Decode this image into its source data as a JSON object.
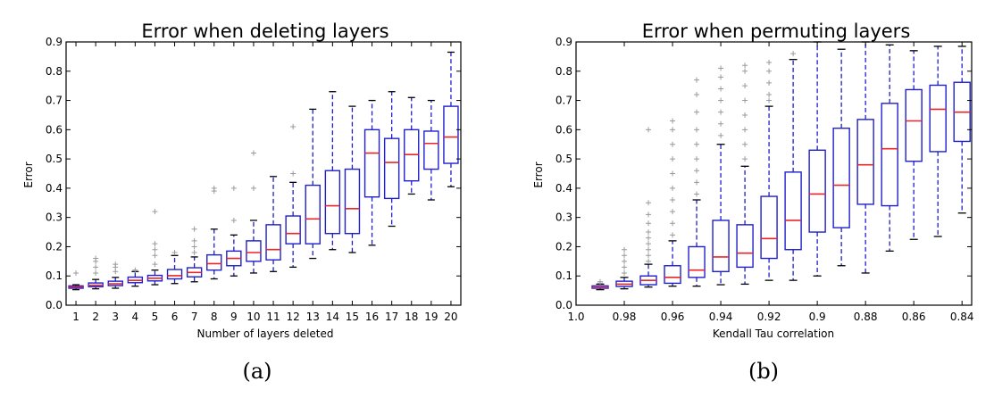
{
  "chart_data": [
    {
      "type": "box",
      "title": "Error when deleting layers",
      "xlabel": "Number of layers deleted",
      "ylabel": "Error",
      "caption": "(a)",
      "ylim": [
        0,
        0.9
      ],
      "yticks": [
        "0.0",
        "0.1",
        "0.2",
        "0.3",
        "0.4",
        "0.5",
        "0.6",
        "0.7",
        "0.8",
        "0.9"
      ],
      "categories": [
        "1",
        "2",
        "3",
        "4",
        "5",
        "6",
        "7",
        "8",
        "9",
        "10",
        "11",
        "12",
        "13",
        "14",
        "15",
        "16",
        "17",
        "18",
        "19",
        "20"
      ],
      "boxes": [
        {
          "lo": 0.053,
          "q1": 0.058,
          "med": 0.062,
          "q3": 0.066,
          "hi": 0.07,
          "out": [
            0.11
          ]
        },
        {
          "lo": 0.056,
          "q1": 0.063,
          "med": 0.068,
          "q3": 0.076,
          "hi": 0.088,
          "out": [
            0.11,
            0.13,
            0.15,
            0.16
          ]
        },
        {
          "lo": 0.058,
          "q1": 0.067,
          "med": 0.073,
          "q3": 0.082,
          "hi": 0.095,
          "out": [
            0.115,
            0.13,
            0.14
          ]
        },
        {
          "lo": 0.065,
          "q1": 0.077,
          "med": 0.085,
          "q3": 0.096,
          "hi": 0.115,
          "out": [
            0.12
          ]
        },
        {
          "lo": 0.07,
          "q1": 0.083,
          "med": 0.092,
          "q3": 0.102,
          "hi": 0.12,
          "out": [
            0.14,
            0.17,
            0.19,
            0.21,
            0.32
          ]
        },
        {
          "lo": 0.074,
          "q1": 0.09,
          "med": 0.101,
          "q3": 0.122,
          "hi": 0.17,
          "out": [
            0.18
          ]
        },
        {
          "lo": 0.08,
          "q1": 0.097,
          "med": 0.112,
          "q3": 0.128,
          "hi": 0.165,
          "out": [
            0.18,
            0.2,
            0.22,
            0.26
          ]
        },
        {
          "lo": 0.09,
          "q1": 0.12,
          "med": 0.142,
          "q3": 0.172,
          "hi": 0.26,
          "out": [
            0.39,
            0.4
          ]
        },
        {
          "lo": 0.1,
          "q1": 0.135,
          "med": 0.16,
          "q3": 0.185,
          "hi": 0.24,
          "out": [
            0.29,
            0.4
          ]
        },
        {
          "lo": 0.11,
          "q1": 0.15,
          "med": 0.18,
          "q3": 0.22,
          "hi": 0.29,
          "out": [
            0.4,
            0.52
          ]
        },
        {
          "lo": 0.115,
          "q1": 0.155,
          "med": 0.19,
          "q3": 0.275,
          "hi": 0.44,
          "out": []
        },
        {
          "lo": 0.13,
          "q1": 0.21,
          "med": 0.245,
          "q3": 0.305,
          "hi": 0.42,
          "out": [
            0.45,
            0.61
          ]
        },
        {
          "lo": 0.16,
          "q1": 0.21,
          "med": 0.295,
          "q3": 0.41,
          "hi": 0.67,
          "out": []
        },
        {
          "lo": 0.19,
          "q1": 0.245,
          "med": 0.34,
          "q3": 0.46,
          "hi": 0.73,
          "out": []
        },
        {
          "lo": 0.18,
          "q1": 0.245,
          "med": 0.33,
          "q3": 0.465,
          "hi": 0.68,
          "out": []
        },
        {
          "lo": 0.205,
          "q1": 0.37,
          "med": 0.52,
          "q3": 0.6,
          "hi": 0.7,
          "out": []
        },
        {
          "lo": 0.27,
          "q1": 0.365,
          "med": 0.488,
          "q3": 0.57,
          "hi": 0.73,
          "out": []
        },
        {
          "lo": 0.38,
          "q1": 0.425,
          "med": 0.515,
          "q3": 0.6,
          "hi": 0.71,
          "out": []
        },
        {
          "lo": 0.36,
          "q1": 0.465,
          "med": 0.553,
          "q3": 0.595,
          "hi": 0.7,
          "out": []
        },
        {
          "lo": 0.405,
          "q1": 0.485,
          "med": 0.575,
          "q3": 0.68,
          "hi": 0.865,
          "out": []
        }
      ]
    },
    {
      "type": "box",
      "title": "Error when permuting layers",
      "xlabel": "Kendall Tau correlation",
      "ylabel": "Error",
      "caption": "(b)",
      "ylim": [
        0,
        0.9
      ],
      "yticks": [
        "0.0",
        "0.1",
        "0.2",
        "0.3",
        "0.4",
        "0.5",
        "0.6",
        "0.7",
        "0.8",
        "0.9"
      ],
      "xticks": [
        "1.0",
        "0.98",
        "0.96",
        "0.94",
        "0.92",
        "0.9",
        "0.88",
        "0.86",
        "0.84"
      ],
      "xlim": [
        1.0,
        0.836
      ],
      "boxes": [
        {
          "x": 0.99,
          "lo": 0.053,
          "q1": 0.058,
          "med": 0.061,
          "q3": 0.066,
          "hi": 0.072,
          "out": [
            0.075,
            0.08
          ]
        },
        {
          "x": 0.98,
          "lo": 0.056,
          "q1": 0.064,
          "med": 0.072,
          "q3": 0.082,
          "hi": 0.095,
          "out": [
            0.11,
            0.13,
            0.15,
            0.17,
            0.19
          ]
        },
        {
          "x": 0.97,
          "lo": 0.062,
          "q1": 0.07,
          "med": 0.085,
          "q3": 0.1,
          "hi": 0.14,
          "out": [
            0.15,
            0.17,
            0.19,
            0.21,
            0.23,
            0.25,
            0.28,
            0.31,
            0.35,
            0.6
          ]
        },
        {
          "x": 0.96,
          "lo": 0.065,
          "q1": 0.075,
          "med": 0.095,
          "q3": 0.135,
          "hi": 0.22,
          "out": [
            0.24,
            0.28,
            0.32,
            0.36,
            0.4,
            0.45,
            0.5,
            0.55,
            0.6,
            0.63
          ]
        },
        {
          "x": 0.95,
          "lo": 0.065,
          "q1": 0.095,
          "med": 0.12,
          "q3": 0.2,
          "hi": 0.36,
          "out": [
            0.38,
            0.42,
            0.46,
            0.5,
            0.55,
            0.6,
            0.66,
            0.72,
            0.77
          ]
        },
        {
          "x": 0.94,
          "lo": 0.07,
          "q1": 0.115,
          "med": 0.165,
          "q3": 0.29,
          "hi": 0.55,
          "out": [
            0.58,
            0.62,
            0.66,
            0.7,
            0.74,
            0.78,
            0.81
          ]
        },
        {
          "x": 0.93,
          "lo": 0.072,
          "q1": 0.13,
          "med": 0.178,
          "q3": 0.275,
          "hi": 0.475,
          "out": [
            0.5,
            0.55,
            0.6,
            0.65,
            0.7,
            0.75,
            0.8,
            0.82
          ]
        },
        {
          "x": 0.92,
          "lo": 0.085,
          "q1": 0.16,
          "med": 0.228,
          "q3": 0.372,
          "hi": 0.68,
          "out": [
            0.7,
            0.72,
            0.76,
            0.8,
            0.83
          ]
        },
        {
          "x": 0.91,
          "lo": 0.085,
          "q1": 0.19,
          "med": 0.29,
          "q3": 0.455,
          "hi": 0.84,
          "out": [
            0.86
          ]
        },
        {
          "x": 0.9,
          "lo": 0.1,
          "q1": 0.25,
          "med": 0.38,
          "q3": 0.53,
          "hi": 0.9,
          "out": []
        },
        {
          "x": 0.89,
          "lo": 0.135,
          "q1": 0.265,
          "med": 0.41,
          "q3": 0.605,
          "hi": 0.875,
          "out": []
        },
        {
          "x": 0.88,
          "lo": 0.11,
          "q1": 0.345,
          "med": 0.48,
          "q3": 0.635,
          "hi": 0.9,
          "out": []
        },
        {
          "x": 0.87,
          "lo": 0.185,
          "q1": 0.34,
          "med": 0.535,
          "q3": 0.69,
          "hi": 0.89,
          "out": []
        },
        {
          "x": 0.86,
          "lo": 0.225,
          "q1": 0.492,
          "med": 0.63,
          "q3": 0.737,
          "hi": 0.87,
          "out": []
        },
        {
          "x": 0.85,
          "lo": 0.235,
          "q1": 0.525,
          "med": 0.67,
          "q3": 0.752,
          "hi": 0.885,
          "out": []
        },
        {
          "x": 0.84,
          "lo": 0.315,
          "q1": 0.56,
          "med": 0.66,
          "q3": 0.762,
          "hi": 0.885,
          "out": []
        }
      ]
    }
  ],
  "style": {
    "box_color": "#1f1fcc",
    "median_color": "#e8272b",
    "outlier_color": "#9a9a9a",
    "axis_color": "#000000"
  }
}
